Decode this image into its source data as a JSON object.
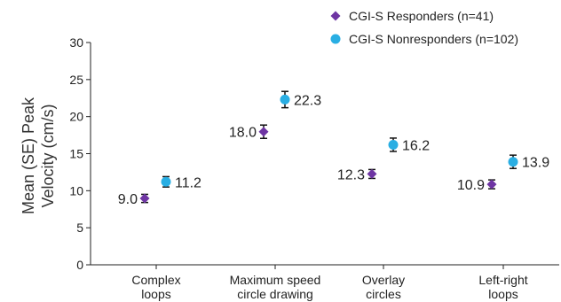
{
  "chart_data": {
    "type": "scatter",
    "title": "",
    "ylabel_lines": [
      "Mean (SE) Peak",
      "Velocity (cm/s)"
    ],
    "ylim": [
      0,
      30
    ],
    "yticks": [
      "0",
      "5",
      "10",
      "15",
      "20",
      "25",
      "30"
    ],
    "categories": [
      {
        "lines": [
          "Complex",
          "loops"
        ]
      },
      {
        "lines": [
          "Maximum speed",
          "circle drawing"
        ]
      },
      {
        "lines": [
          "Overlay",
          "circles"
        ]
      },
      {
        "lines": [
          "Left-right",
          "loops"
        ]
      }
    ],
    "series": [
      {
        "name": "CGI-S Responders (n=41)",
        "color": "#6e35a3",
        "marker": "diamond",
        "values": [
          8.96,
          17.96,
          12.26,
          10.86
        ],
        "labels": [
          "9.0",
          "18.0",
          "12.3",
          "10.9"
        ],
        "se": [
          0.55,
          0.9,
          0.6,
          0.6
        ]
      },
      {
        "name": "CGI-S Nonresponders (n=102)",
        "color": "#29aee3",
        "marker": "circle",
        "values": [
          11.2,
          22.3,
          16.2,
          13.9
        ],
        "labels": [
          "11.2",
          "22.3",
          "16.2",
          "13.9"
        ],
        "se": [
          0.7,
          1.1,
          0.9,
          0.9
        ]
      }
    ],
    "legend_position": "top-right",
    "grid": false
  }
}
